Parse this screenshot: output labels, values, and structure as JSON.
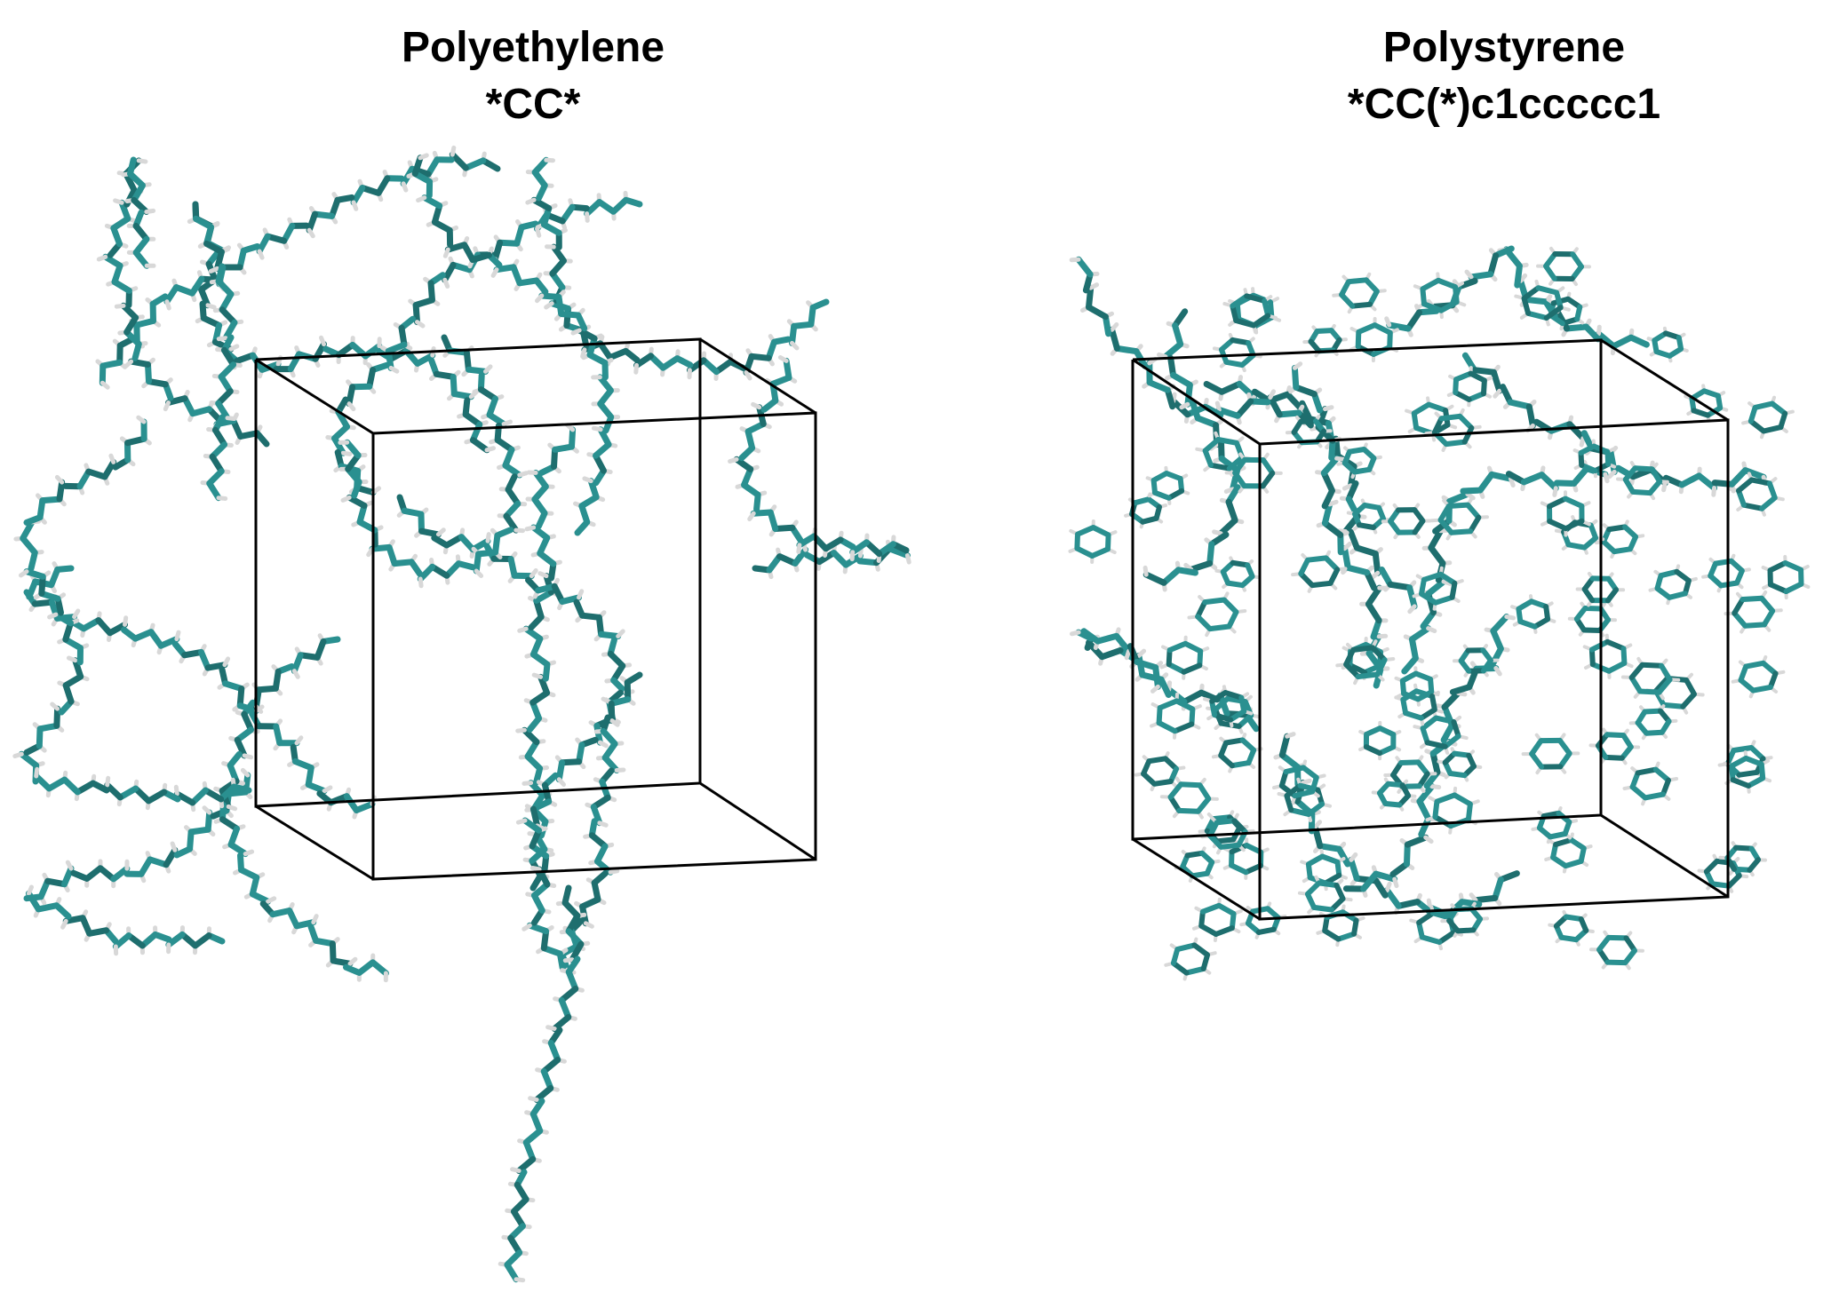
{
  "panels": [
    {
      "name": "Polyethylene",
      "smiles": "*CC*"
    },
    {
      "name": "Polystyrene",
      "smiles": "*CC(*)c1ccccc1"
    }
  ],
  "colors": {
    "bond_carbon": "#2a9090",
    "bond_carbon_dark": "#1e6e6e",
    "hydrogen_tip": "#d8d8d8",
    "box_edge": "#000000",
    "background": "#ffffff"
  },
  "icons": {
    "molecule": "stick-model"
  }
}
